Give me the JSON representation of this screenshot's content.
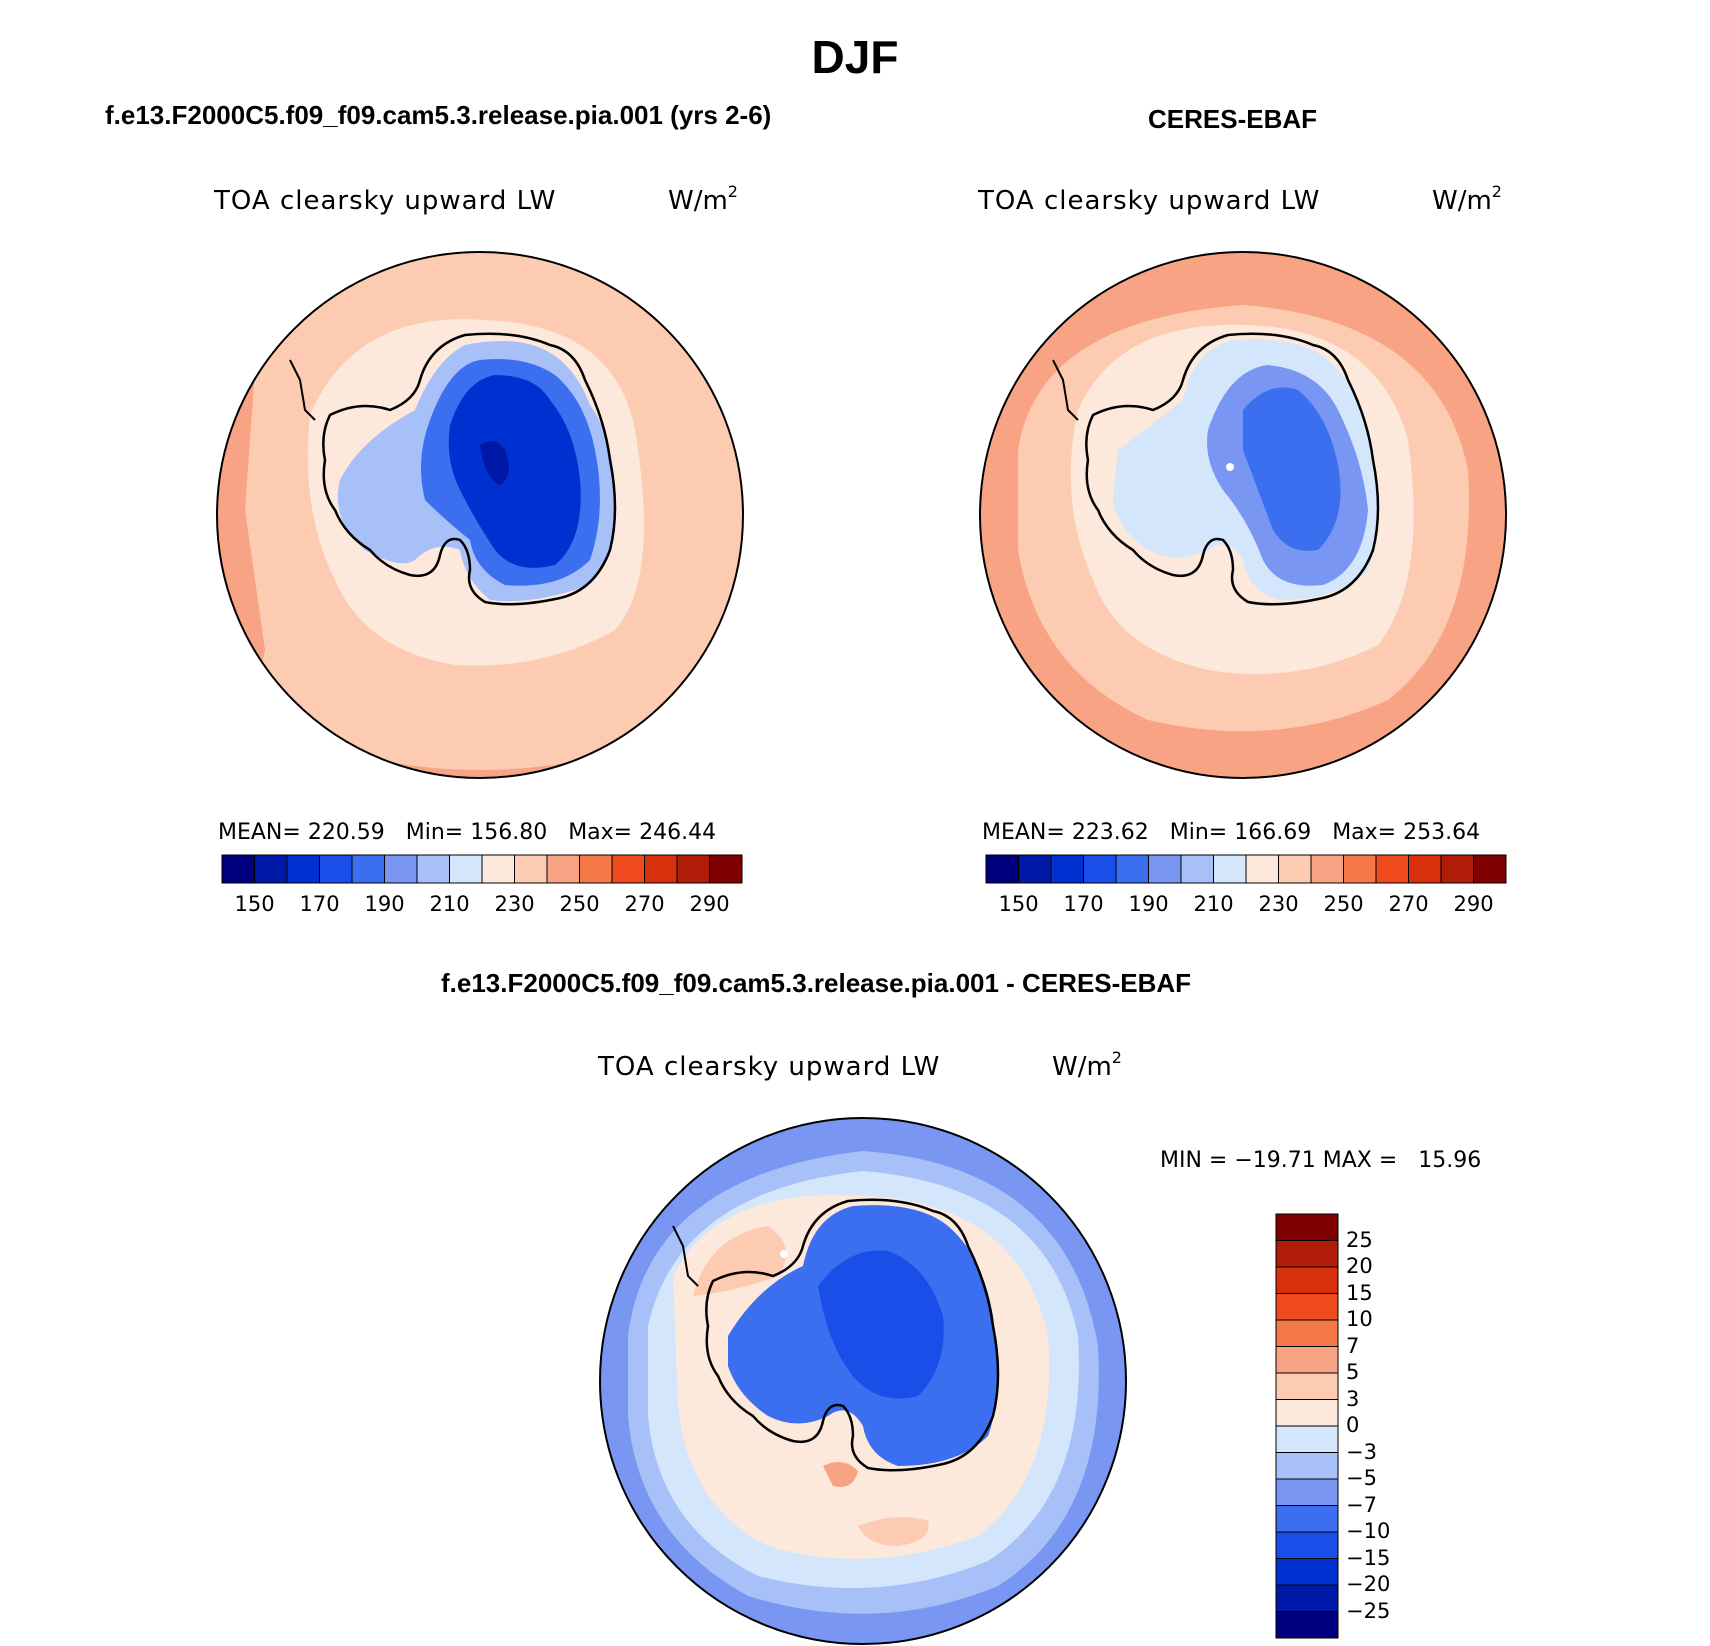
{
  "title": "DJF",
  "panels": [
    {
      "title": "f.e13.F2000C5.f09_f09.cam5.3.release.pia.001 (yrs 2-6)",
      "variable": "TOA clearsky upward LW",
      "units": "W/m",
      "units_sup": "2",
      "stats": "MEAN= 220.59   Min= 156.80   Max= 246.44"
    },
    {
      "title": "CERES-EBAF",
      "variable": "TOA clearsky upward LW",
      "units": "W/m",
      "units_sup": "2",
      "stats": "MEAN= 223.62   Min= 166.69   Max= 253.64"
    },
    {
      "title": "f.e13.F2000C5.f09_f09.cam5.3.release.pia.001 - CERES-EBAF",
      "variable": "TOA clearsky upward LW",
      "units": "W/m",
      "units_sup": "2",
      "stats": "MIN = −19.71 MAX =   15.96"
    }
  ],
  "colorbar_abs": {
    "colors": [
      "#00007f",
      "#0018a8",
      "#0030d0",
      "#1a4ee8",
      "#3c6ef0",
      "#7896f2",
      "#a8c0f8",
      "#d4e6fb",
      "#fde8dc",
      "#fccbb2",
      "#f8a484",
      "#f47848",
      "#ef4a1e",
      "#d8300c",
      "#b01c08",
      "#7f0000"
    ],
    "labels": [
      "150",
      "170",
      "190",
      "210",
      "230",
      "250",
      "270",
      "290"
    ]
  },
  "colorbar_diff": {
    "colors": [
      "#00007f",
      "#0018a8",
      "#0030d0",
      "#1a4ee8",
      "#3c6ef0",
      "#7896f2",
      "#a8c0f8",
      "#d4e6fb",
      "#fde8dc",
      "#fccbb2",
      "#f8a484",
      "#f47848",
      "#ef4a1e",
      "#d8300c",
      "#b01c08",
      "#7f0000"
    ],
    "labels": [
      "25",
      "20",
      "15",
      "10",
      "7",
      "5",
      "3",
      "0",
      "−3",
      "−5",
      "−7",
      "−10",
      "−15",
      "−20",
      "−25"
    ]
  }
}
